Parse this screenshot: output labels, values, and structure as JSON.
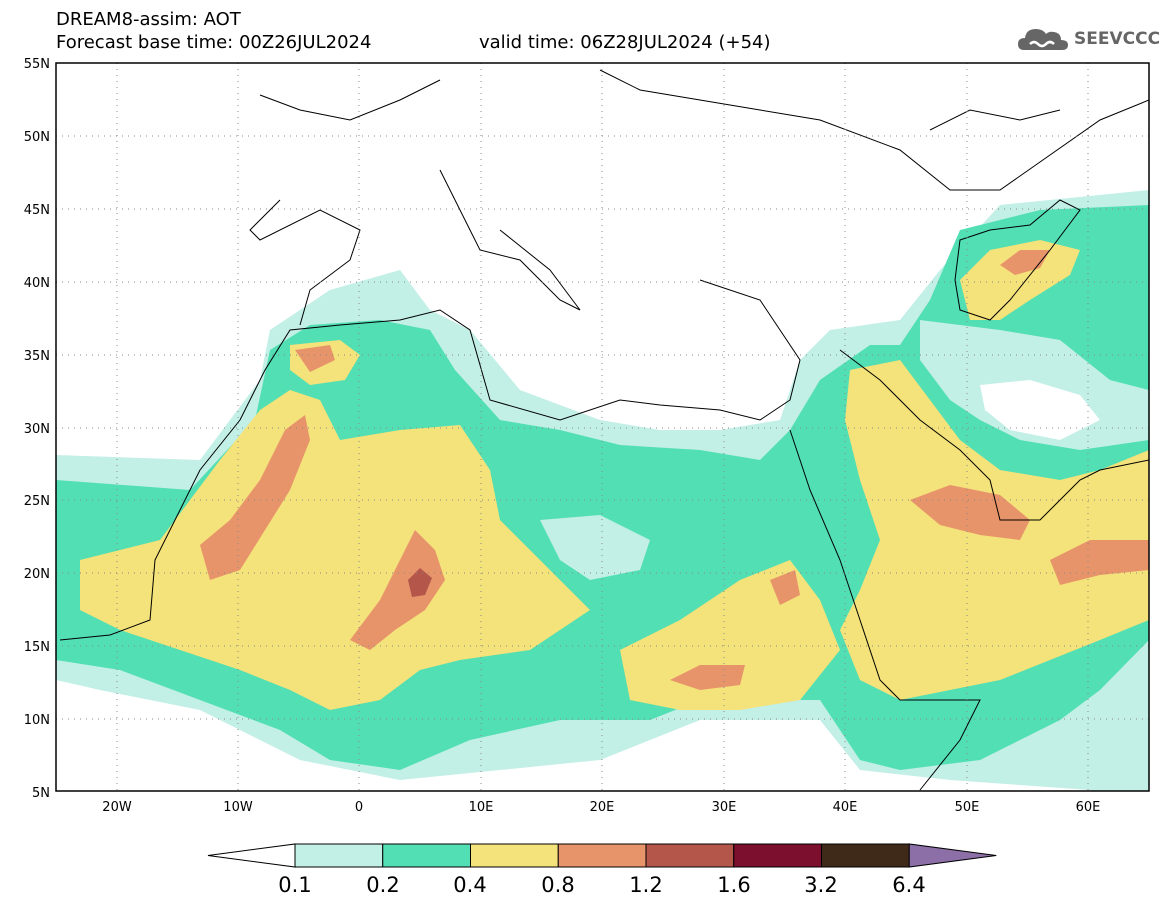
{
  "title": {
    "line1": "DREAM8-assim: AOT",
    "line2": "Forecast base time: 00Z26JUL2024",
    "valid": "valid time: 06Z28JUL2024 (+54)"
  },
  "logo": {
    "text": "SEEVCCC",
    "icon": "cloud-icon",
    "color": "#666666"
  },
  "map": {
    "lat_ticks": [
      "55N",
      "50N",
      "45N",
      "40N",
      "35N",
      "30N",
      "25N",
      "20N",
      "15N",
      "10N",
      "5N"
    ],
    "lon_ticks": [
      "20W",
      "10W",
      "0",
      "10E",
      "20E",
      "30E",
      "40E",
      "50E",
      "60E"
    ],
    "lon_range": [
      -25,
      65
    ],
    "lat_range": [
      5,
      55
    ],
    "gridlines": "dotted"
  },
  "colorbar": {
    "labels": [
      "0.1",
      "0.2",
      "0.4",
      "0.8",
      "1.2",
      "1.6",
      "3.2",
      "6.4"
    ],
    "colors": [
      "#ffffff",
      "#c2efe6",
      "#52dfb3",
      "#f4e27a",
      "#e8946a",
      "#b4574a",
      "#7d0f2e",
      "#3f2a1a",
      "#8d6fa8"
    ]
  }
}
